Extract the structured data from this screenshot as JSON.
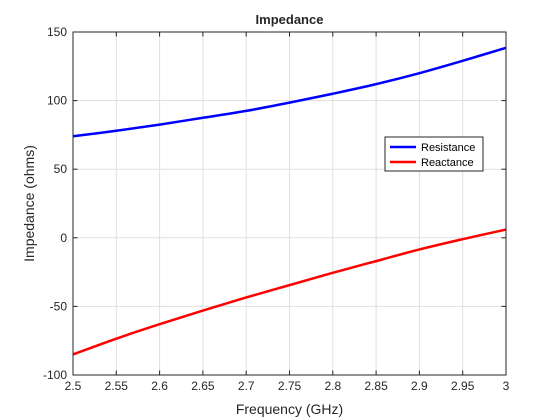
{
  "chart_data": {
    "type": "line",
    "title": "Impedance",
    "xlabel": "Frequency (GHz)",
    "ylabel": "Impedance (ohms)",
    "xlim": [
      2.5,
      3.0
    ],
    "ylim": [
      -100,
      150
    ],
    "xticks": [
      2.5,
      2.55,
      2.6,
      2.65,
      2.7,
      2.75,
      2.8,
      2.85,
      2.9,
      2.95,
      3.0
    ],
    "xtick_labels": [
      "2.5",
      "2.55",
      "2.6",
      "2.65",
      "2.7",
      "2.75",
      "2.8",
      "2.85",
      "2.9",
      "2.95",
      "3"
    ],
    "yticks": [
      -100,
      -50,
      0,
      50,
      100,
      150
    ],
    "ytick_labels": [
      "-100",
      "-50",
      "0",
      "50",
      "100",
      "150"
    ],
    "grid": true,
    "legend_position": "right",
    "x": [
      2.5,
      2.55,
      2.6,
      2.65,
      2.7,
      2.75,
      2.8,
      2.85,
      2.9,
      2.95,
      3.0
    ],
    "series": [
      {
        "name": "Resistance",
        "color": "#0000ff",
        "values": [
          74,
          78,
          82.5,
          87.5,
          92.5,
          98.5,
          105,
          112,
          120,
          129,
          138.5
        ]
      },
      {
        "name": "Reactance",
        "color": "#ff0000",
        "values": [
          -85,
          -73.5,
          -63,
          -53,
          -43.5,
          -34.5,
          -25.5,
          -17,
          -8.5,
          -1,
          6
        ]
      }
    ]
  }
}
